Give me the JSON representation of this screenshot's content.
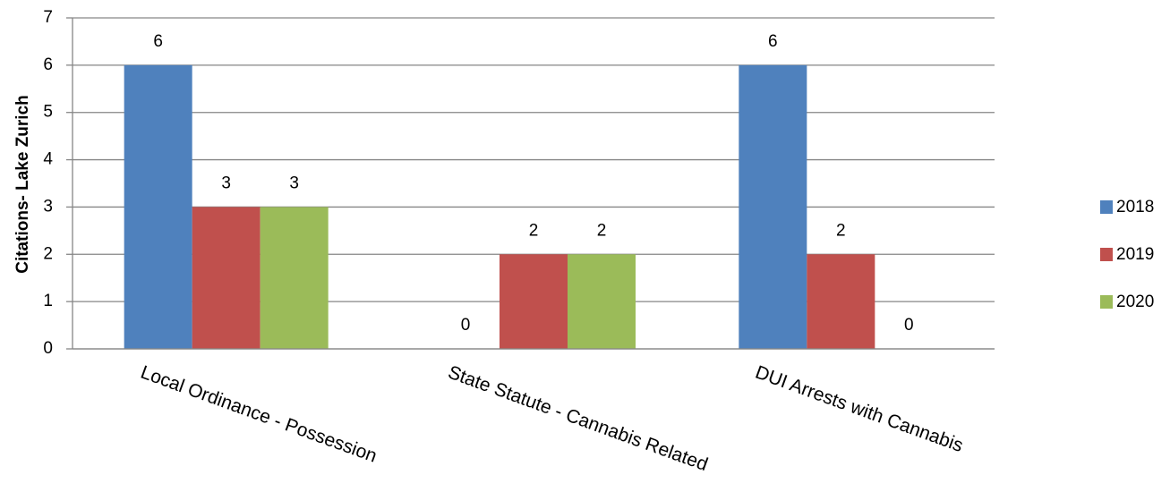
{
  "chart_data": {
    "type": "bar",
    "categories": [
      "Local Ordinance - Possession",
      "State Statute - Cannabis Related",
      "DUI Arrests with Cannabis"
    ],
    "series": [
      {
        "name": "2018",
        "values": [
          6,
          0,
          6
        ],
        "color": "#4F81BD"
      },
      {
        "name": "2019",
        "values": [
          3,
          2,
          2
        ],
        "color": "#C0504D"
      },
      {
        "name": "2020",
        "values": [
          3,
          2,
          0
        ],
        "color": "#9BBB59"
      }
    ],
    "title": "",
    "xlabel": "",
    "ylabel": "Citations- Lake Zurich",
    "ylim": [
      0,
      7
    ],
    "yticks": [
      "0",
      "1",
      "2",
      "3",
      "4",
      "5",
      "6",
      "7"
    ],
    "data_labels": [
      [
        "6",
        "0",
        "6"
      ],
      [
        "3",
        "2",
        "2"
      ],
      [
        "3",
        "2",
        "0"
      ]
    ],
    "grid": true,
    "legend_position": "right"
  }
}
